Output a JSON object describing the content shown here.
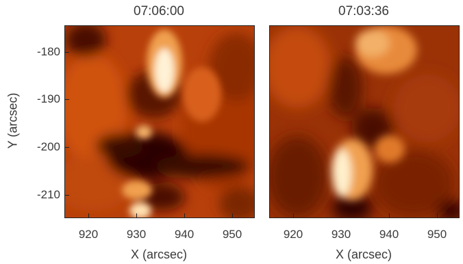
{
  "panels": [
    {
      "title": "07:06:00"
    },
    {
      "title": "07:03:36"
    }
  ],
  "axes": {
    "xlabel": "X (arcsec)",
    "ylabel": "Y (arcsec)",
    "xticks": [
      "920",
      "930",
      "940",
      "950"
    ],
    "yticks": [
      "-180",
      "-190",
      "-200",
      "-210"
    ]
  },
  "colors": {
    "dark": "#2a0600",
    "mid": "#b63a00",
    "bright": "#e8701a",
    "highlight": "#fff2d6"
  }
}
